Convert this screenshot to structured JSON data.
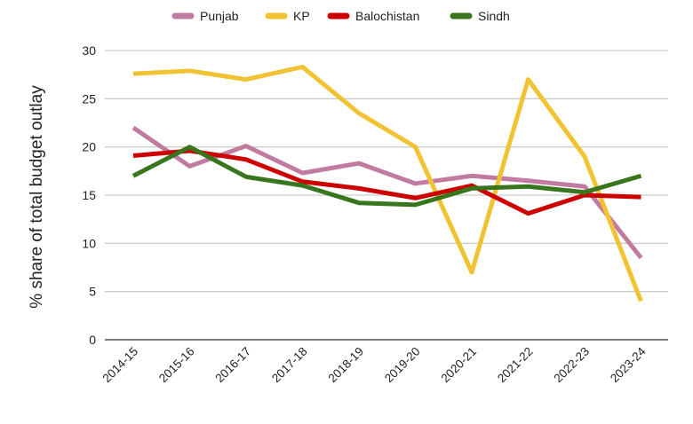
{
  "chart_data": {
    "type": "line",
    "title": "",
    "xlabel": "",
    "ylabel": "% share of total budget outlay",
    "ylim": [
      0,
      30
    ],
    "yticks": [
      0,
      5,
      10,
      15,
      20,
      25,
      30
    ],
    "grid": true,
    "legend_position": "top",
    "categories": [
      "2014-15",
      "2015-16",
      "2016-17",
      "2017-18",
      "2018-19",
      "2019-20",
      "2020-21",
      "2021-22",
      "2022-23",
      "2023-24"
    ],
    "series": [
      {
        "name": "Punjab",
        "color": "#c27ba0",
        "values": [
          22,
          18,
          20.1,
          17.3,
          18.3,
          16.2,
          17,
          16.5,
          15.9,
          8.5
        ]
      },
      {
        "name": "KP",
        "color": "#f1c232",
        "values": [
          27.6,
          27.9,
          27,
          28.3,
          23.5,
          20,
          7,
          27,
          19,
          4
        ]
      },
      {
        "name": "Balochistan",
        "color": "#cc0000",
        "values": [
          19.1,
          19.6,
          18.7,
          16.4,
          15.7,
          14.7,
          16,
          13.1,
          15,
          14.8
        ]
      },
      {
        "name": "Sindh",
        "color": "#38761d",
        "values": [
          17,
          20,
          16.9,
          16,
          14.2,
          14,
          15.7,
          15.9,
          15.3,
          17
        ]
      }
    ]
  }
}
